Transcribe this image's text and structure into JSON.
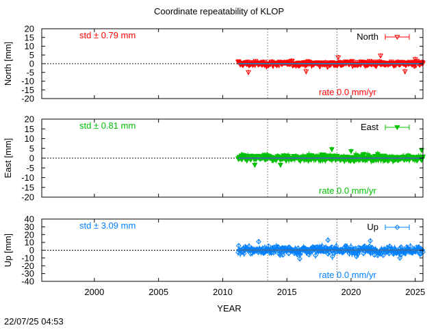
{
  "chart_data": {
    "type": "scatter",
    "title": "Coordinate repeatability of KLOP",
    "xlabel": "YEAR",
    "xlim": [
      1995.9,
      2025.6
    ],
    "xticks": [
      2000,
      2005,
      2010,
      2015,
      2020,
      2025
    ],
    "footer": "22/07/25 04:53",
    "vlines": [
      2013.5,
      2018.9
    ],
    "data_start": 2011.2,
    "data_end": 2025.6,
    "panels": [
      {
        "id": "north",
        "ylabel": "North [mm]",
        "ylim": [
          -20,
          20
        ],
        "yticks": [
          20,
          15,
          10,
          5,
          0,
          -5,
          -10,
          -15,
          -20
        ],
        "legend": "North",
        "std_label": "std ± 0.79 mm",
        "rate_label": "rate  0.0 mm/yr",
        "color": "#ff0000",
        "marker": "triangle-down-open",
        "spread": 1.6,
        "errbar": 1.2,
        "outliers": [
          [
            2012.0,
            -5.0
          ],
          [
            2016.5,
            -4.5
          ],
          [
            2019.0,
            3.5
          ],
          [
            2022.3,
            4.5
          ],
          [
            2024.2,
            -4.5
          ],
          [
            2025.0,
            2.5
          ]
        ],
        "mean": 0.0
      },
      {
        "id": "east",
        "ylabel": "East [mm]",
        "ylim": [
          -20,
          20
        ],
        "yticks": [
          20,
          15,
          10,
          5,
          0,
          -5,
          -10,
          -15,
          -20
        ],
        "legend": "East",
        "std_label": "std ± 0.81 mm",
        "rate_label": "rate  0.0 mm/yr",
        "color": "#00c000",
        "marker": "triangle-down-filled",
        "spread": 1.7,
        "errbar": 1.4,
        "outliers": [
          [
            2012.5,
            -3.5
          ],
          [
            2018.5,
            4.5
          ],
          [
            2020.0,
            3.5
          ],
          [
            2025.5,
            4.0
          ],
          [
            2014.5,
            -3.5
          ]
        ],
        "mean": 0.0
      },
      {
        "id": "up",
        "ylabel": "Up [mm]",
        "ylim": [
          -40,
          40
        ],
        "yticks": [
          40,
          30,
          20,
          10,
          0,
          -10,
          -20,
          -30,
          -40
        ],
        "legend": "Up",
        "std_label": "std ± 3.09 mm",
        "rate_label": "rate  0.0 mm/yr",
        "color": "#0080ff",
        "marker": "diamond-open",
        "spread": 6.5,
        "errbar": 3.5,
        "outliers": [
          [
            2012.8,
            11.0
          ],
          [
            2018.2,
            13.0
          ],
          [
            2021.5,
            12.0
          ],
          [
            2016.0,
            -11.0
          ],
          [
            2023.8,
            -10.0
          ]
        ],
        "mean": 0.0
      }
    ]
  }
}
